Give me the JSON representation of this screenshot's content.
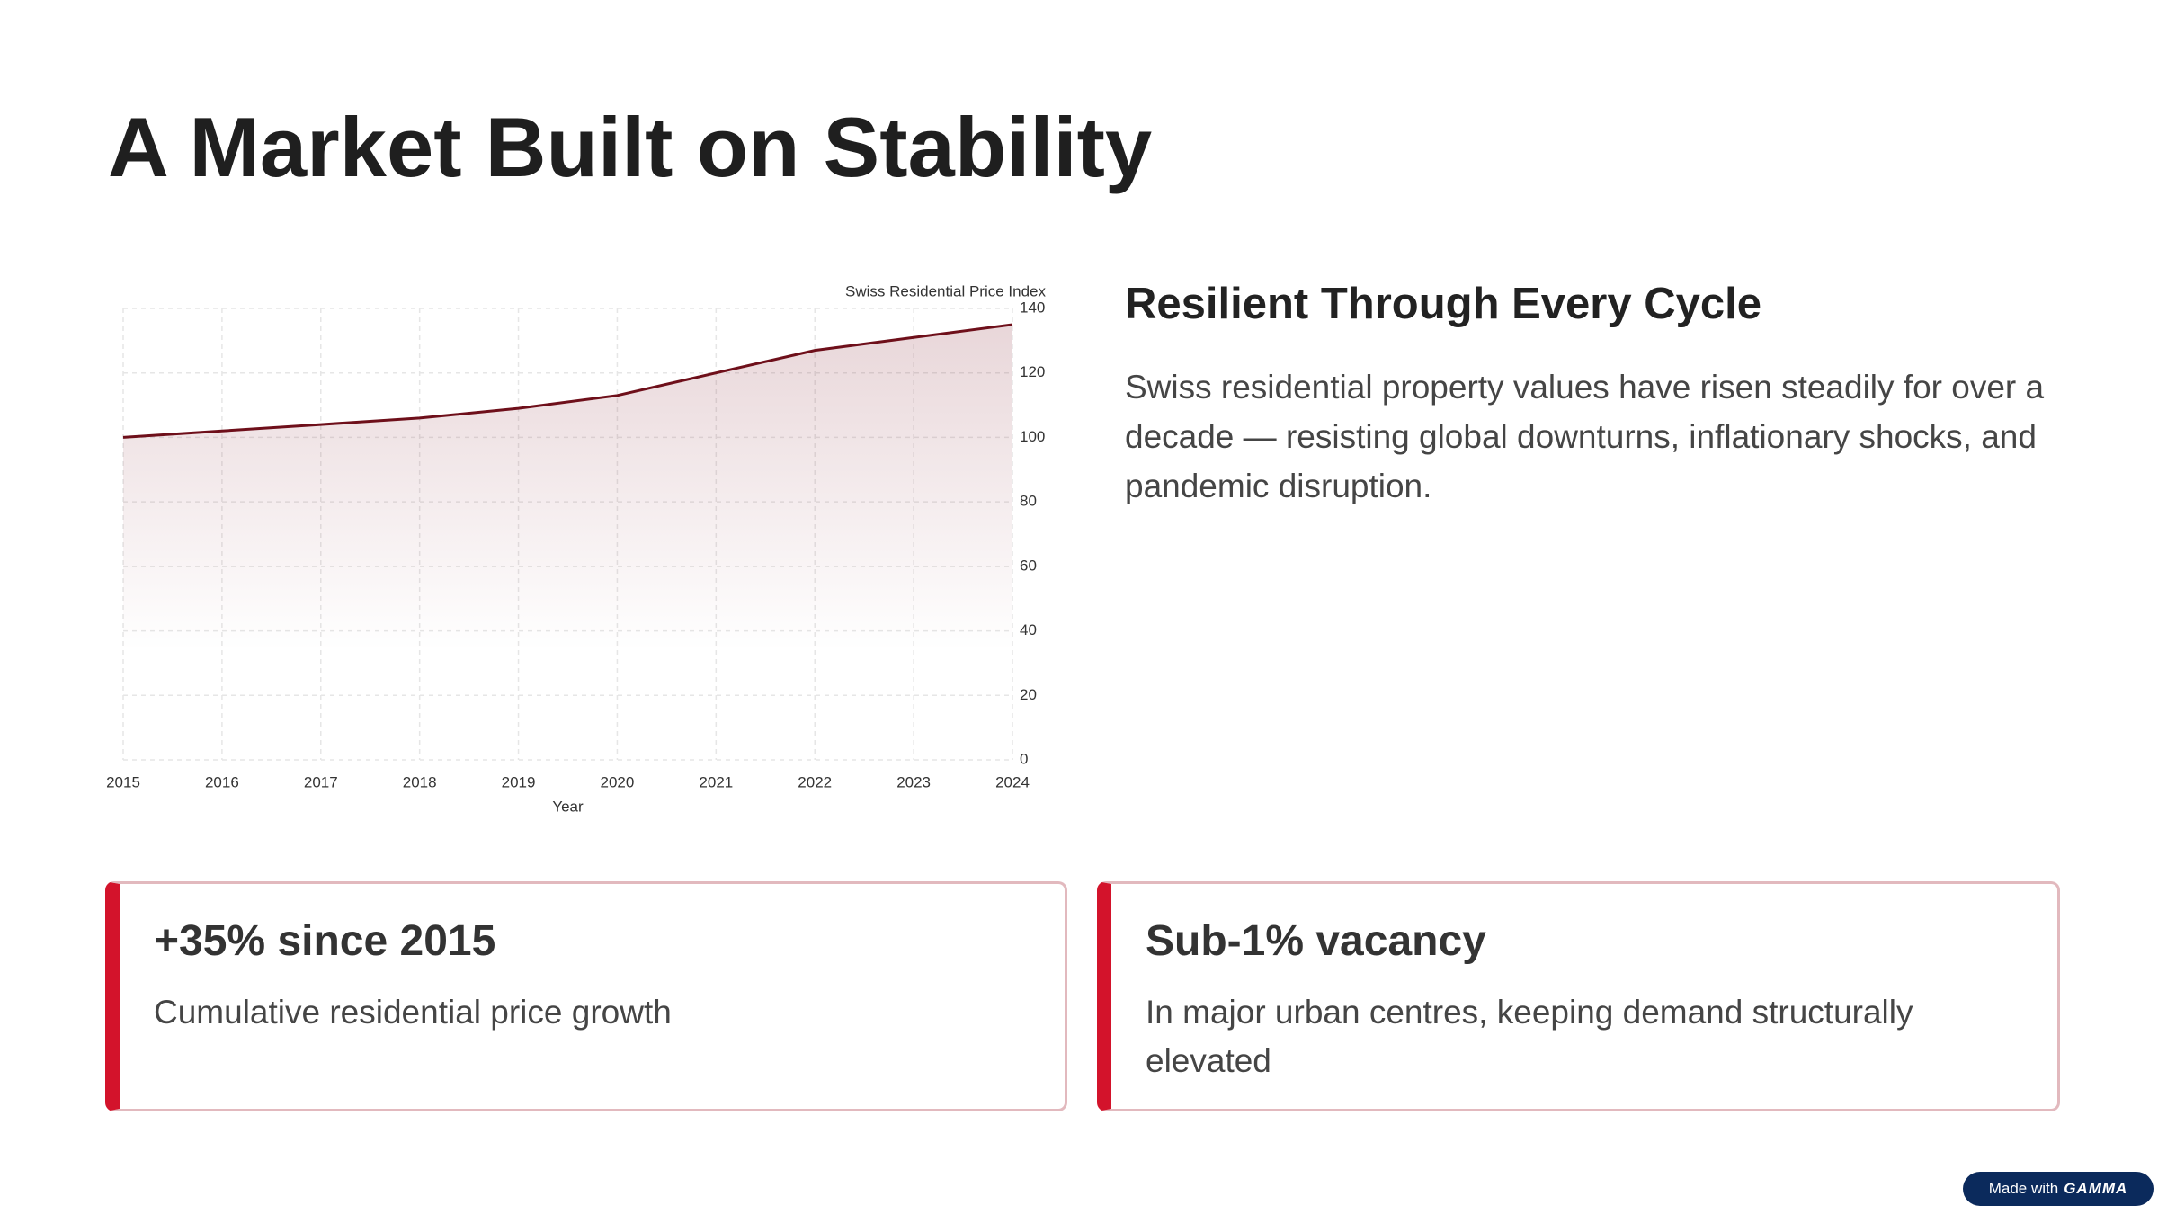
{
  "title": "A Market Built on Stability",
  "chart_data": {
    "type": "line",
    "y_label": "Swiss Residential Price Index",
    "x_label": "Year",
    "x": [
      2015,
      2016,
      2017,
      2018,
      2019,
      2020,
      2021,
      2022,
      2023,
      2024
    ],
    "values": [
      100,
      102,
      104,
      106,
      109,
      113,
      120,
      127,
      131,
      135
    ],
    "color": "#6e0f1a",
    "area": true,
    "xlim": [
      2015,
      2024
    ],
    "xticks": [
      2015,
      2016,
      2017,
      2018,
      2019,
      2020,
      2021,
      2022,
      2023,
      2024
    ],
    "ylim": [
      0,
      140
    ],
    "yticks": [
      0,
      20,
      40,
      60,
      80,
      100,
      120,
      140
    ],
    "grid": true,
    "y_axis_side": "right"
  },
  "heading": "Resilient Through Every Cycle",
  "body": "Swiss residential property values have risen steadily for over a decade — resisting global downturns, inflationary shocks, and pandemic disruption.",
  "cards": [
    {
      "title": "+35% since 2015",
      "text": "Cumulative residential price growth"
    },
    {
      "title": "Sub-1% vacancy",
      "text": "In major urban centres, keeping demand structurally elevated"
    }
  ],
  "badge": {
    "text": "Made with",
    "brand": "GAMMA"
  }
}
